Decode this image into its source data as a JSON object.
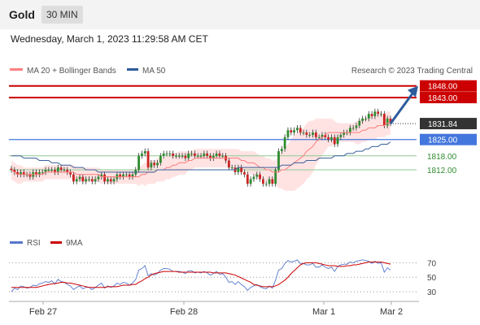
{
  "header": {
    "title": "Gold",
    "timeframe": "30 MIN"
  },
  "datetime": "Wednesday, March 1, 2023 11:29:58 AM CET",
  "legend": {
    "ma20_label": "MA 20 + Bollinger Bands",
    "ma50_label": "MA 50",
    "credit": "Research © 2023 Trading Central"
  },
  "colors": {
    "resistance": "#cc0000",
    "current": "#333333",
    "pivot": "#4477dd",
    "support": "#2e8b2e",
    "candle_up": "#2e8b2e",
    "candle_down": "#cc2222",
    "bollinger": "#ffd9d9",
    "ma20": "#ff7b7b",
    "ma50": "#3a5f9a",
    "rsi": "#5577cc",
    "rsi_ma": "#cc0000",
    "arrow": "#2d5c9c"
  },
  "chart_data": [
    {
      "type": "candlestick",
      "title": "",
      "x_ticks": [
        "Feb 27",
        "Feb 28",
        "Mar 1",
        "Mar 2"
      ],
      "ylim": [
        1789,
        1850
      ],
      "price_lines": [
        {
          "label": "1848.00",
          "value": 1848.0,
          "kind": "resistance"
        },
        {
          "label": "1843.00",
          "value": 1843.0,
          "kind": "resistance"
        },
        {
          "label": "1831.84",
          "value": 1831.84,
          "kind": "current"
        },
        {
          "label": "1825.00",
          "value": 1825.0,
          "kind": "pivot"
        },
        {
          "label": "1818.00",
          "value": 1818.0,
          "kind": "support"
        },
        {
          "label": "1812.00",
          "value": 1812.0,
          "kind": "support"
        }
      ],
      "close": [
        1812,
        1811,
        1810,
        1811,
        1810,
        1810,
        1809,
        1811,
        1810,
        1811,
        1811,
        1812,
        1812,
        1812,
        1811,
        1813,
        1812,
        1812,
        1811,
        1810,
        1807,
        1808,
        1809,
        1807,
        1808,
        1808,
        1807,
        1808,
        1809,
        1810,
        1807,
        1808,
        1807,
        1808,
        1810,
        1809,
        1810,
        1810,
        1809,
        1810,
        1812,
        1818,
        1819,
        1820,
        1813,
        1815,
        1814,
        1815,
        1818,
        1819,
        1819,
        1819,
        1818,
        1818,
        1818,
        1818,
        1817,
        1819,
        1819,
        1818,
        1818,
        1818,
        1819,
        1818,
        1817,
        1818,
        1819,
        1818,
        1818,
        1816,
        1813,
        1813,
        1811,
        1813,
        1811,
        1810,
        1806,
        1808,
        1809,
        1810,
        1808,
        1806,
        1806,
        1808,
        1806,
        1812,
        1820,
        1821,
        1826,
        1829,
        1828,
        1829,
        1830,
        1828,
        1828,
        1827,
        1827,
        1828,
        1826,
        1826,
        1827,
        1826,
        1825,
        1826,
        1823,
        1826,
        1827,
        1828,
        1828,
        1830,
        1830,
        1831,
        1833,
        1834,
        1834,
        1836,
        1835,
        1837,
        1836,
        1836,
        1831,
        1834,
        1832
      ],
      "ma20": [
        1812,
        1811,
        1810,
        1810,
        1810,
        1810,
        1810,
        1810,
        1810,
        1810,
        1810,
        1811,
        1811,
        1811,
        1811,
        1811,
        1811,
        1811,
        1811,
        1811,
        1811,
        1810,
        1810,
        1810,
        1810,
        1810,
        1810,
        1810,
        1810,
        1809,
        1809,
        1809,
        1809,
        1809,
        1809,
        1809,
        1809,
        1809,
        1809,
        1809,
        1809,
        1809,
        1810,
        1810,
        1811,
        1811,
        1811,
        1812,
        1812,
        1812,
        1813,
        1813,
        1814,
        1814,
        1815,
        1815,
        1815,
        1816,
        1816,
        1817,
        1817,
        1817,
        1817,
        1817,
        1817,
        1817,
        1817,
        1817,
        1817,
        1817,
        1817,
        1817,
        1817,
        1817,
        1816,
        1816,
        1815,
        1815,
        1815,
        1814,
        1813,
        1813,
        1812,
        1812,
        1811,
        1811,
        1811,
        1812,
        1812,
        1813,
        1814,
        1815,
        1816,
        1817,
        1818,
        1820,
        1821,
        1822,
        1824,
        1825,
        1826,
        1827,
        1828,
        1828,
        1828,
        1828,
        1828,
        1828,
        1828,
        1828,
        1828,
        1828,
        1828,
        1829,
        1829,
        1830,
        1830,
        1830,
        1831,
        1831,
        1831,
        1832,
        1832
      ],
      "ma50": [
        1818,
        1818,
        1818,
        1818,
        1817,
        1817,
        1817,
        1817,
        1817,
        1816,
        1816,
        1816,
        1816,
        1815,
        1815,
        1815,
        1814,
        1814,
        1814,
        1814,
        1813,
        1813,
        1813,
        1813,
        1812,
        1812,
        1812,
        1812,
        1811,
        1811,
        1811,
        1811,
        1811,
        1811,
        1811,
        1811,
        1811,
        1811,
        1811,
        1811,
        1811,
        1811,
        1811,
        1811,
        1811,
        1811,
        1811,
        1812,
        1812,
        1812,
        1812,
        1812,
        1812,
        1812,
        1812,
        1812,
        1812,
        1812,
        1812,
        1812,
        1812,
        1812,
        1812,
        1812,
        1812,
        1812,
        1812,
        1812,
        1812,
        1812,
        1812,
        1812,
        1812,
        1813,
        1813,
        1813,
        1813,
        1813,
        1813,
        1813,
        1813,
        1813,
        1813,
        1813,
        1813,
        1813,
        1813,
        1814,
        1814,
        1814,
        1814,
        1815,
        1815,
        1815,
        1815,
        1816,
        1816,
        1816,
        1816,
        1817,
        1817,
        1817,
        1817,
        1817,
        1818,
        1818,
        1818,
        1818,
        1819,
        1819,
        1819,
        1820,
        1820,
        1820,
        1821,
        1821,
        1822,
        1822,
        1822,
        1823,
        1823,
        1823,
        1824
      ],
      "bollinger_width": [
        4,
        4,
        4,
        4,
        3,
        3,
        3,
        3,
        3,
        3,
        3,
        3,
        3,
        3,
        3,
        3,
        3,
        3,
        3,
        3,
        3,
        3,
        3,
        3,
        3,
        3,
        3,
        3,
        3,
        3,
        3,
        3,
        3,
        3,
        3,
        3,
        3,
        3,
        3,
        3,
        3,
        4,
        4,
        5,
        5,
        5,
        5,
        5,
        5,
        5,
        5,
        5,
        5,
        5,
        5,
        5,
        5,
        4,
        4,
        4,
        4,
        4,
        4,
        4,
        4,
        4,
        4,
        4,
        4,
        4,
        4,
        4,
        4,
        4,
        4,
        4,
        5,
        5,
        5,
        5,
        5,
        5,
        5,
        5,
        5,
        5,
        7,
        8,
        9,
        10,
        11,
        12,
        12,
        12,
        12,
        12,
        12,
        11,
        10,
        9,
        8,
        7,
        6,
        6,
        5,
        4,
        4,
        4,
        4,
        4,
        4,
        5,
        5,
        5,
        5,
        5,
        5,
        5,
        5,
        5,
        5,
        5,
        5
      ],
      "projection": {
        "from": 1831.84,
        "to": 1848.0
      }
    },
    {
      "type": "line",
      "title": "",
      "series": [
        {
          "name": "RSI",
          "values": [
            30,
            35,
            33,
            38,
            37,
            35,
            36,
            39,
            38,
            41,
            42,
            44,
            43,
            45,
            41,
            47,
            44,
            43,
            40,
            38,
            33,
            36,
            38,
            34,
            36,
            36,
            33,
            36,
            39,
            42,
            35,
            38,
            36,
            38,
            42,
            40,
            43,
            42,
            39,
            42,
            47,
            60,
            62,
            66,
            52,
            55,
            53,
            55,
            60,
            62,
            62,
            61,
            58,
            58,
            58,
            57,
            55,
            59,
            59,
            56,
            57,
            56,
            58,
            56,
            53,
            55,
            58,
            54,
            55,
            50,
            43,
            44,
            40,
            44,
            40,
            37,
            32,
            36,
            38,
            40,
            37,
            35,
            34,
            38,
            35,
            46,
            60,
            62,
            69,
            73,
            71,
            72,
            74,
            69,
            69,
            67,
            67,
            69,
            64,
            64,
            67,
            64,
            62,
            64,
            58,
            65,
            67,
            68,
            68,
            71,
            70,
            72,
            73,
            74,
            73,
            72,
            69,
            72,
            69,
            70,
            57,
            63,
            60
          ]
        },
        {
          "name": "9MA",
          "values": [
            36,
            36,
            36,
            36,
            36,
            36,
            36,
            36,
            36,
            37,
            38,
            39,
            40,
            41,
            41,
            42,
            43,
            43,
            42,
            42,
            41,
            40,
            39,
            38,
            37,
            36,
            36,
            36,
            36,
            36,
            36,
            37,
            37,
            37,
            37,
            38,
            39,
            39,
            39,
            40,
            40,
            43,
            45,
            48,
            50,
            53,
            55,
            56,
            57,
            58,
            58,
            58,
            58,
            58,
            57,
            57,
            57,
            57,
            57,
            57,
            57,
            57,
            57,
            57,
            57,
            56,
            56,
            56,
            56,
            56,
            55,
            54,
            53,
            51,
            49,
            47,
            45,
            43,
            40,
            39,
            38,
            37,
            37,
            37,
            37,
            38,
            40,
            43,
            46,
            50,
            55,
            59,
            63,
            67,
            69,
            70,
            70,
            70,
            70,
            69,
            68,
            67,
            66,
            66,
            66,
            65,
            65,
            65,
            66,
            66,
            67,
            67,
            68,
            69,
            70,
            71,
            71,
            71,
            71,
            71,
            70,
            69,
            68
          ]
        }
      ],
      "y_ticks": [
        70,
        50,
        30
      ],
      "ylim": [
        20,
        85
      ]
    }
  ]
}
